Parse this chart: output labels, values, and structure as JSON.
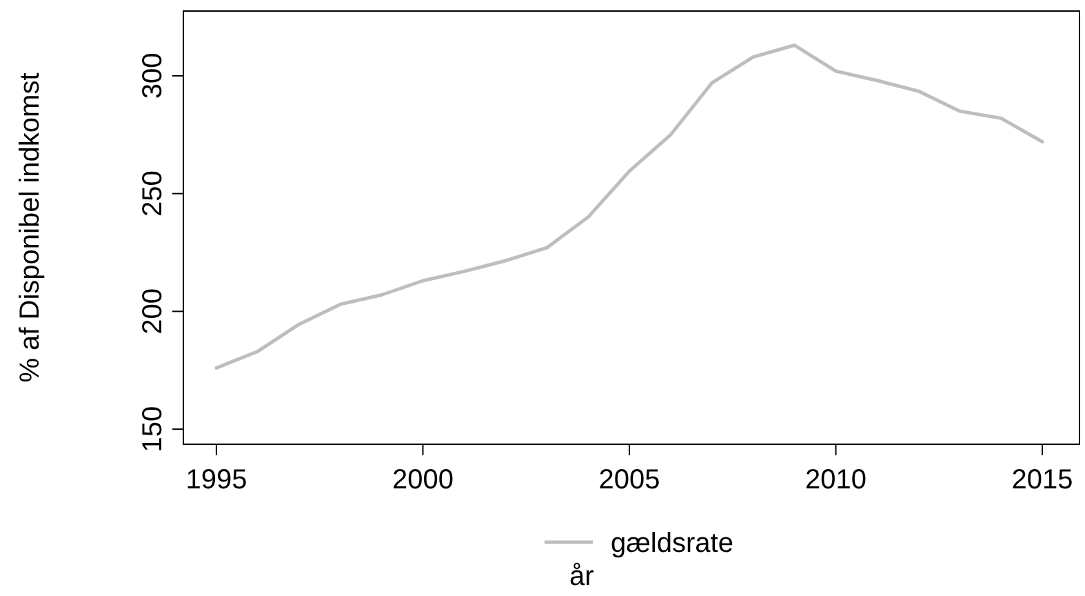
{
  "chart_data": {
    "type": "line",
    "xlabel": "år",
    "ylabel": "% af Disponibel indkomst",
    "x": [
      1995,
      1996,
      1997,
      1998,
      1999,
      2000,
      2001,
      2002,
      2003,
      2004,
      2005,
      2006,
      2007,
      2008,
      2009,
      2010,
      2011,
      2012,
      2013,
      2014,
      2015
    ],
    "series": [
      {
        "name": "gældsrate",
        "color": "#bebebe",
        "values": [
          176,
          183,
          194.5,
          203,
          207,
          213,
          217,
          221.5,
          227,
          240,
          259.5,
          275,
          297,
          308,
          313,
          302,
          298,
          293.5,
          285,
          282,
          272
        ]
      }
    ],
    "xlim": [
      1994.2,
      2015.9
    ],
    "ylim": [
      143.6,
      327.5
    ],
    "xticks": [
      1995,
      2000,
      2005,
      2010,
      2015
    ],
    "yticks": [
      150,
      200,
      250,
      300
    ],
    "grid": false,
    "legend": "bottom",
    "marker": "none",
    "line_style": "solid"
  }
}
